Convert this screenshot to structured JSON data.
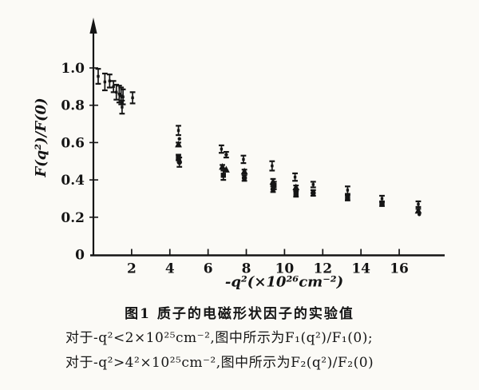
{
  "figure": {
    "caption_title": "图1  质子的电磁形状因子的实验值",
    "caption_line1": "对于-q²<2×10²⁵cm⁻²,图中所示为F₁(q²)/F₁(0);",
    "caption_line2": "对于-q²>4²×10²⁵cm⁻²,图中所示为F₂(q²)/F₂(0)"
  },
  "chart_data": {
    "type": "scatter",
    "title": "图1 质子的电磁形状因子的实验值",
    "xlabel": "-q²(×10²⁶cm⁻²)",
    "ylabel": "F(q²)/F(0)",
    "xlim": [
      0,
      18.4
    ],
    "ylim": [
      0,
      1.25
    ],
    "grid": false,
    "legend": "none",
    "ink_color": "#151515",
    "xticks": [
      {
        "v": 2,
        "label": "2"
      },
      {
        "v": 4,
        "label": "4"
      },
      {
        "v": 6,
        "label": "6"
      },
      {
        "v": 8,
        "label": "8"
      },
      {
        "v": 10,
        "label": "10"
      },
      {
        "v": 12,
        "label": "12"
      },
      {
        "v": 14,
        "label": "14"
      },
      {
        "v": 16,
        "label": "16"
      }
    ],
    "yticks": [
      {
        "v": 0,
        "label": "0"
      },
      {
        "v": 0.2,
        "label": "0.2"
      },
      {
        "v": 0.4,
        "label": "0.4"
      },
      {
        "v": 0.6,
        "label": "0.6"
      },
      {
        "v": 0.8,
        "label": "0.8"
      },
      {
        "v": 1.0,
        "label": "1.0"
      }
    ],
    "series": [
      {
        "marker": "errorbar",
        "points": [
          {
            "x": 0.25,
            "y": 0.955,
            "err": 0.04
          },
          {
            "x": 0.6,
            "y": 0.925,
            "err": 0.045
          },
          {
            "x": 0.85,
            "y": 0.93,
            "err": 0.035
          },
          {
            "x": 1.05,
            "y": 0.9,
            "err": 0.03
          },
          {
            "x": 1.2,
            "y": 0.87,
            "err": 0.04
          },
          {
            "x": 1.35,
            "y": 0.86,
            "err": 0.045
          },
          {
            "x": 1.45,
            "y": 0.85,
            "err": 0.045
          },
          {
            "x": 1.55,
            "y": 0.845,
            "err": 0.04
          },
          {
            "x": 1.5,
            "y": 0.79,
            "err": 0.035
          },
          {
            "x": 2.05,
            "y": 0.84,
            "err": 0.03
          },
          {
            "x": 4.45,
            "y": 0.665,
            "err": 0.025
          },
          {
            "x": 6.7,
            "y": 0.565,
            "err": 0.02
          },
          {
            "x": 7.85,
            "y": 0.51,
            "err": 0.02
          },
          {
            "x": 9.35,
            "y": 0.475,
            "err": 0.025
          },
          {
            "x": 10.55,
            "y": 0.415,
            "err": 0.02
          },
          {
            "x": 11.5,
            "y": 0.375,
            "err": 0.015
          },
          {
            "x": 13.3,
            "y": 0.345,
            "err": 0.02
          },
          {
            "x": 15.1,
            "y": 0.3,
            "err": 0.015
          },
          {
            "x": 17.0,
            "y": 0.27,
            "err": 0.015
          }
        ]
      },
      {
        "marker": "dot",
        "points": [
          {
            "x": 4.5,
            "y": 0.62,
            "err": 0
          },
          {
            "x": 6.95,
            "y": 0.535,
            "err": 0.015
          },
          {
            "x": 17.05,
            "y": 0.215,
            "err": 0
          }
        ]
      },
      {
        "marker": "triangle",
        "points": [
          {
            "x": 4.45,
            "y": 0.59,
            "err": 0.01
          },
          {
            "x": 6.75,
            "y": 0.47,
            "err": 0.01
          },
          {
            "x": 6.95,
            "y": 0.455,
            "err": 0
          },
          {
            "x": 7.9,
            "y": 0.445,
            "err": 0.01
          },
          {
            "x": 9.4,
            "y": 0.39,
            "err": 0.015
          },
          {
            "x": 10.6,
            "y": 0.36,
            "err": 0.01
          },
          {
            "x": 17.0,
            "y": 0.235,
            "err": 0.01
          }
        ]
      },
      {
        "marker": "square",
        "points": [
          {
            "x": 4.45,
            "y": 0.52,
            "err": 0.015
          },
          {
            "x": 6.8,
            "y": 0.425,
            "err": 0.025
          },
          {
            "x": 9.45,
            "y": 0.37,
            "err": 0.02
          },
          {
            "x": 10.6,
            "y": 0.325,
            "err": 0.015
          },
          {
            "x": 13.3,
            "y": 0.305,
            "err": 0.015
          }
        ]
      },
      {
        "marker": "circle",
        "points": [
          {
            "x": 4.5,
            "y": 0.495,
            "err": 0.025
          },
          {
            "x": 7.9,
            "y": 0.41,
            "err": 0.015
          },
          {
            "x": 9.4,
            "y": 0.35,
            "err": 0.015
          },
          {
            "x": 11.5,
            "y": 0.33,
            "err": 0.015
          },
          {
            "x": 15.1,
            "y": 0.27,
            "err": 0.01
          }
        ]
      }
    ]
  }
}
